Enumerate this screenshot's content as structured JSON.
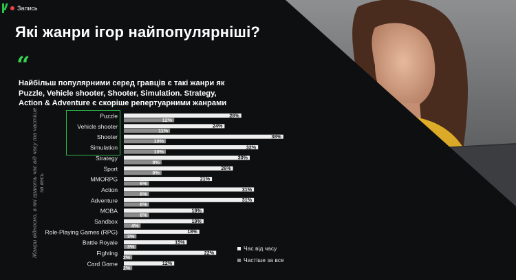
{
  "recording": {
    "label": "Запись"
  },
  "title": "Які жанри ігор найпопулярніші?",
  "quote_mark": "“",
  "lead_lines": [
    "Найбільш популярними серед гравців є такі жанри як",
    "Puzzle, Vehicle shooter, Shooter, Simulation. Strategy,",
    "Action & Adventure є скоріше репертуарними жанрами"
  ],
  "y_axis_label": "Жанри відносно, в які грають час від часу та частіше за весь",
  "colors": {
    "accent": "#2bc24a",
    "bar_light": "#efefef",
    "bar_dark": "#8c8c8c",
    "background": "#0e0f10",
    "sweater": "#d6a020"
  },
  "chart_data": {
    "type": "bar",
    "orientation": "horizontal",
    "categories": [
      "Puzzle",
      "Vehicle shooter",
      "Shooter",
      "Simulation",
      "Strategy",
      "Sport",
      "MMORPG",
      "Action",
      "Adventure",
      "MOBA",
      "Sandbox",
      "Role-Playing Games (RPG)",
      "Battle Royale",
      "Fighting",
      "Card Game"
    ],
    "highlighted_categories": [
      "Puzzle",
      "Vehicle shooter",
      "Shooter",
      "Simulation"
    ],
    "series": [
      {
        "name": "Час від часу",
        "color": "#efefef",
        "values": [
          28,
          24,
          38,
          32,
          30,
          26,
          21,
          31,
          31,
          19,
          19,
          18,
          15,
          22,
          12
        ]
      },
      {
        "name": "Частіше за все",
        "color": "#8c8c8c",
        "values": [
          12,
          11,
          10,
          10,
          9,
          9,
          6,
          6,
          6,
          6,
          4,
          3,
          3,
          2,
          2
        ]
      }
    ],
    "value_suffix": "%"
  }
}
